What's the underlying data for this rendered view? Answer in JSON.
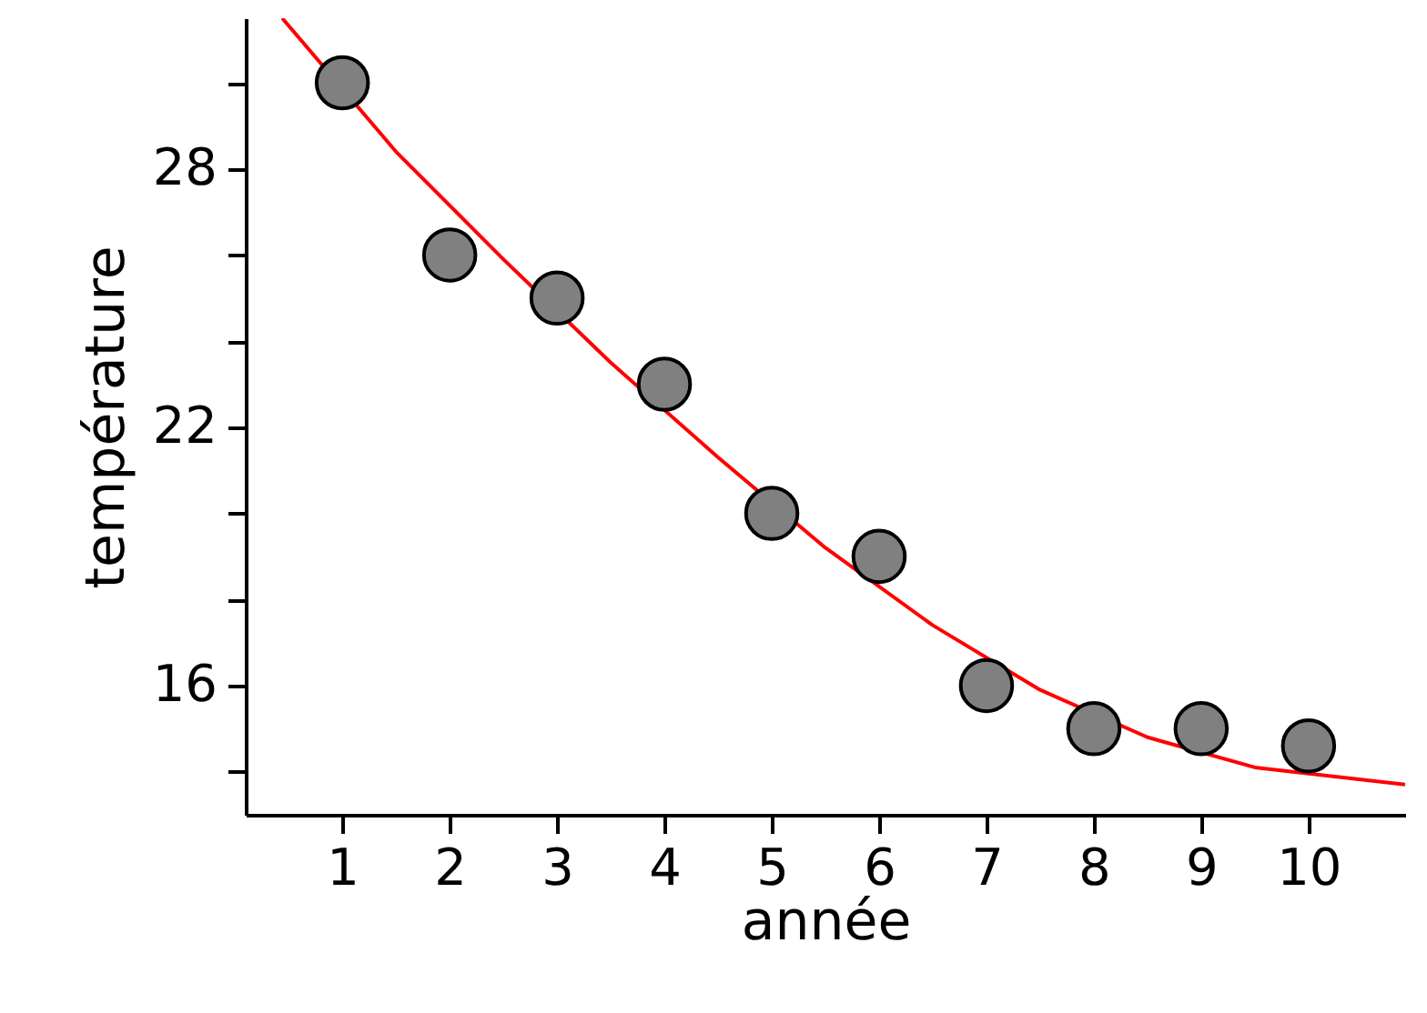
{
  "chart_data": {
    "type": "scatter",
    "xlabel": "année",
    "ylabel": "température",
    "x": [
      1,
      2,
      3,
      4,
      5,
      6,
      7,
      8,
      9,
      10
    ],
    "series": [
      {
        "color": "#808080",
        "marker": "circle",
        "values": [
          30,
          26,
          25,
          23,
          20,
          19,
          16,
          15,
          15,
          14.6
        ]
      },
      {
        "type": "line",
        "color": "#ff0000",
        "x": [
          0.44,
          1.5,
          2.5,
          3.5,
          4.5,
          5.5,
          6.5,
          7.5,
          8.5,
          9.5,
          10.9
        ],
        "values": [
          31.5,
          28.4,
          25.9,
          23.5,
          21.3,
          19.2,
          17.4,
          15.9,
          14.8,
          14.1,
          13.7
        ]
      }
    ],
    "xlim": [
      0.1,
      10.9
    ],
    "xticks": [
      1,
      2,
      3,
      4,
      5,
      6,
      7,
      8,
      9,
      10
    ],
    "ylim": [
      13,
      31.5
    ],
    "yticks": [
      {
        "value": 14,
        "label": null
      },
      16,
      {
        "value": 18,
        "label": null
      },
      {
        "value": 20,
        "label": null
      },
      22,
      {
        "value": 24,
        "label": null
      },
      {
        "value": 26,
        "label": null
      },
      28,
      {
        "value": 30,
        "label": null
      }
    ],
    "grid": false
  }
}
